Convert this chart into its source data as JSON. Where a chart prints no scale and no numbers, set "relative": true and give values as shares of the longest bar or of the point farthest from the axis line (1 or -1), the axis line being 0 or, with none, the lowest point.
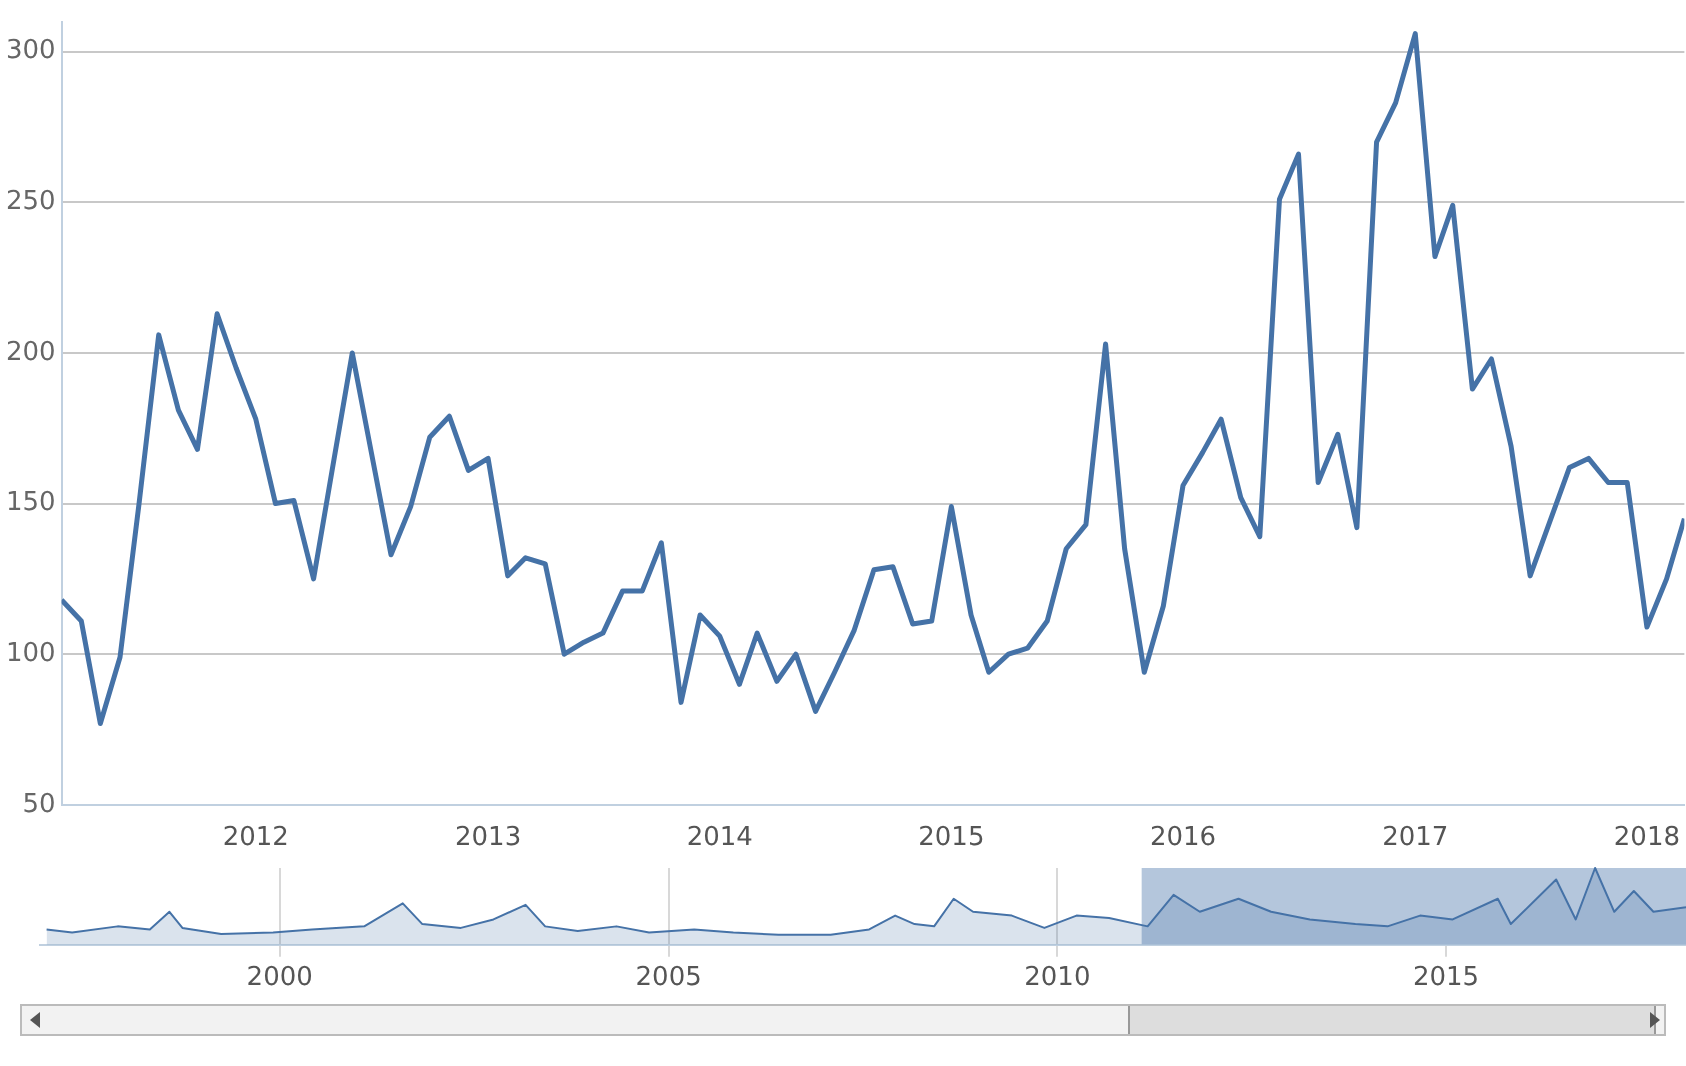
{
  "chart_data": [
    {
      "type": "line",
      "x": [
        "2011-03",
        "2011-04",
        "2011-05",
        "2011-06",
        "2011-07",
        "2011-08",
        "2011-09",
        "2011-10",
        "2011-11",
        "2011-12",
        "2012-01",
        "2012-02",
        "2012-03",
        "2012-04",
        "2012-05",
        "2012-06",
        "2012-07",
        "2012-08",
        "2012-09",
        "2012-10",
        "2012-11",
        "2012-12",
        "2013-01",
        "2013-02",
        "2013-03",
        "2013-04",
        "2013-05",
        "2013-06",
        "2013-07",
        "2013-08",
        "2013-09",
        "2013-10",
        "2013-11",
        "2013-12",
        "2014-01",
        "2014-02",
        "2014-03",
        "2014-04",
        "2014-05",
        "2014-06",
        "2014-07",
        "2014-08",
        "2014-09",
        "2014-10",
        "2014-11",
        "2014-12",
        "2015-01",
        "2015-02",
        "2015-03",
        "2015-04",
        "2015-05",
        "2015-06",
        "2015-07",
        "2015-08",
        "2015-09",
        "2015-10",
        "2015-11",
        "2015-12",
        "2016-01",
        "2016-02",
        "2016-03",
        "2016-04",
        "2016-05",
        "2016-06",
        "2016-07",
        "2016-08",
        "2016-09",
        "2016-10",
        "2016-11",
        "2016-12",
        "2017-01",
        "2017-02",
        "2017-03",
        "2017-04",
        "2017-05",
        "2017-06",
        "2017-07",
        "2017-08",
        "2017-09",
        "2017-10",
        "2017-11",
        "2017-12",
        "2018-01",
        "2018-02",
        "2018-03"
      ],
      "series": [
        {
          "color": "#4572a7",
          "values": [
            118,
            111,
            77,
            99,
            150,
            206,
            181,
            168,
            213,
            195,
            178,
            150,
            151,
            125,
            162,
            200,
            167,
            133,
            149,
            172,
            179,
            161,
            165,
            126,
            132,
            130,
            100,
            104,
            107,
            121,
            121,
            137,
            84,
            113,
            106,
            90,
            107,
            91,
            100,
            81,
            94,
            108,
            128,
            129,
            110,
            111,
            149,
            113,
            94,
            100,
            102,
            111,
            135,
            143,
            203,
            135,
            94,
            116,
            156,
            167,
            178,
            152,
            139,
            251,
            266,
            157,
            173,
            142,
            270,
            283,
            306,
            232,
            249,
            188,
            198,
            169,
            126,
            144,
            162,
            165,
            157,
            157,
            109,
            125,
            145
          ]
        }
      ],
      "xlim": [
        "2011-03",
        "2018-03"
      ],
      "xticks": [
        "2012",
        "2013",
        "2014",
        "2015",
        "2016",
        "2017",
        "2018"
      ],
      "ylim": [
        50,
        310
      ],
      "yticks": [
        50,
        100,
        150,
        200,
        250,
        300
      ],
      "grid": "y",
      "marker": "none"
    },
    {
      "type": "area",
      "relative": true,
      "x": [
        "1997-01",
        "1997-05",
        "1997-12",
        "1998-05",
        "1998-08",
        "1998-10",
        "1999-04",
        "1999-12",
        "2000-06",
        "2001-02",
        "2001-08",
        "2001-11",
        "2002-05",
        "2002-10",
        "2003-03",
        "2003-06",
        "2003-11",
        "2004-05",
        "2004-10",
        "2005-05",
        "2005-11",
        "2006-06",
        "2007-02",
        "2007-08",
        "2007-12",
        "2008-03",
        "2008-06",
        "2008-09",
        "2008-12",
        "2009-06",
        "2009-11",
        "2010-04",
        "2010-09",
        "2011-03",
        "2011-07",
        "2011-11",
        "2012-05",
        "2012-10",
        "2013-04",
        "2013-11",
        "2014-04",
        "2014-09",
        "2015-02",
        "2015-09",
        "2015-11",
        "2016-06",
        "2016-09",
        "2016-12",
        "2017-03",
        "2017-06",
        "2017-09",
        "2018-02"
      ],
      "series": [
        {
          "color": "#4572a7",
          "values": [
            0.2,
            0.16,
            0.24,
            0.2,
            0.43,
            0.22,
            0.14,
            0.16,
            0.2,
            0.24,
            0.54,
            0.27,
            0.22,
            0.33,
            0.52,
            0.24,
            0.18,
            0.24,
            0.16,
            0.2,
            0.16,
            0.13,
            0.13,
            0.2,
            0.38,
            0.27,
            0.24,
            0.6,
            0.43,
            0.38,
            0.22,
            0.38,
            0.35,
            0.24,
            0.65,
            0.43,
            0.6,
            0.43,
            0.33,
            0.27,
            0.24,
            0.38,
            0.33,
            0.6,
            0.27,
            0.85,
            0.33,
            1,
            0.43,
            0.7,
            0.43,
            0.49
          ]
        }
      ],
      "xlim": [
        "1996-12",
        "2018-02"
      ],
      "xticks": [
        "2000",
        "2005",
        "2010",
        "2015"
      ],
      "tick_labels": "x",
      "grid": "x",
      "bands": [
        {
          "axis": "x",
          "from": "2011-02",
          "to": "2018-02",
          "color": "#b4c6dc"
        }
      ]
    }
  ]
}
